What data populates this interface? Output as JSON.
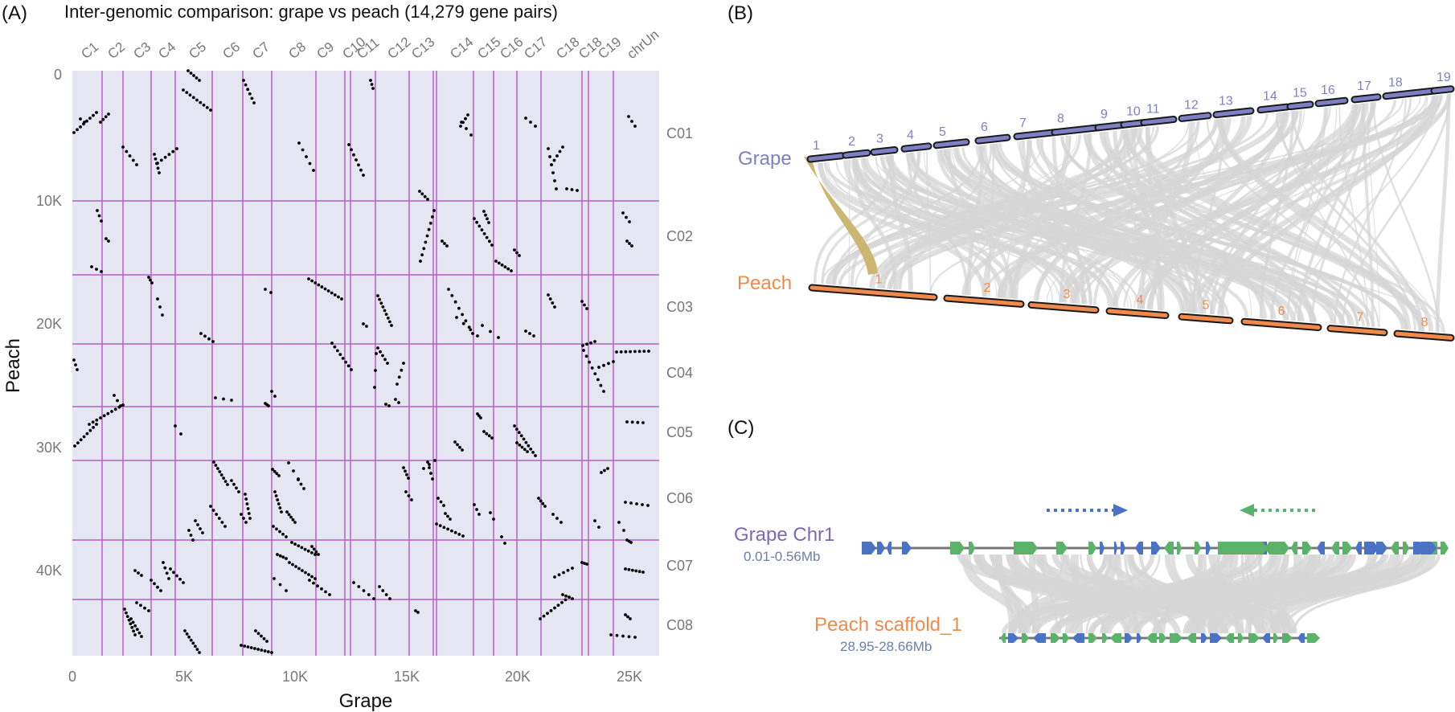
{
  "panelA": {
    "panel_label": "(A)",
    "title": "Inter-genomic comparison: grape vs peach (14,279 gene pairs)",
    "xlabel": "Grape",
    "ylabel": "Peach",
    "grape_chroms": [
      "C1",
      "C2",
      "C3",
      "C4",
      "C5",
      "C6",
      "C7",
      "C8",
      "C9",
      "C10",
      "C11",
      "C12",
      "C13",
      "C14",
      "C15",
      "C16",
      "C17",
      "C18",
      "C18",
      "C19",
      "chrUn"
    ],
    "peach_chroms": [
      "C01",
      "C02",
      "C03",
      "C04",
      "C05",
      "C06",
      "C07",
      "C08"
    ],
    "xticks": [
      "0",
      "5K",
      "10K",
      "15K",
      "20K",
      "25K"
    ],
    "yticks": [
      "0",
      "10K",
      "20K",
      "30K",
      "40K"
    ],
    "colors": {
      "background": "#e6e6f2",
      "grid": "#b55fc8",
      "dot": "#000000",
      "label": "#777777"
    }
  },
  "panelB": {
    "panel_label": "(B)",
    "grape_label": "Grape",
    "peach_label": "Peach",
    "grape_chr_labels": [
      "1",
      "2",
      "3",
      "4",
      "5",
      "6",
      "7",
      "8",
      "9",
      "10",
      "11",
      "12",
      "13",
      "14",
      "15",
      "16",
      "17",
      "18",
      "19"
    ],
    "peach_chr_labels": [
      "1",
      "2",
      "3",
      "4",
      "5",
      "6",
      "7",
      "8"
    ],
    "colors": {
      "grape": "#7f7fc4",
      "peach": "#f08a4b",
      "highlight": "#c8b36a",
      "link": "#d6d6d6"
    }
  },
  "panelC": {
    "panel_label": "(C)",
    "grape_label": "Grape Chr1",
    "grape_range": "0.01-0.56Mb",
    "peach_label": "Peach scaffold_1",
    "peach_range": "28.95-28.66Mb",
    "colors": {
      "blue": "#4a73c6",
      "green": "#5bb26a",
      "link": "#d6d6d6",
      "grape_label": "#7b69b8",
      "peach_label": "#f08a4b",
      "range": "#6b7fa8"
    }
  }
}
